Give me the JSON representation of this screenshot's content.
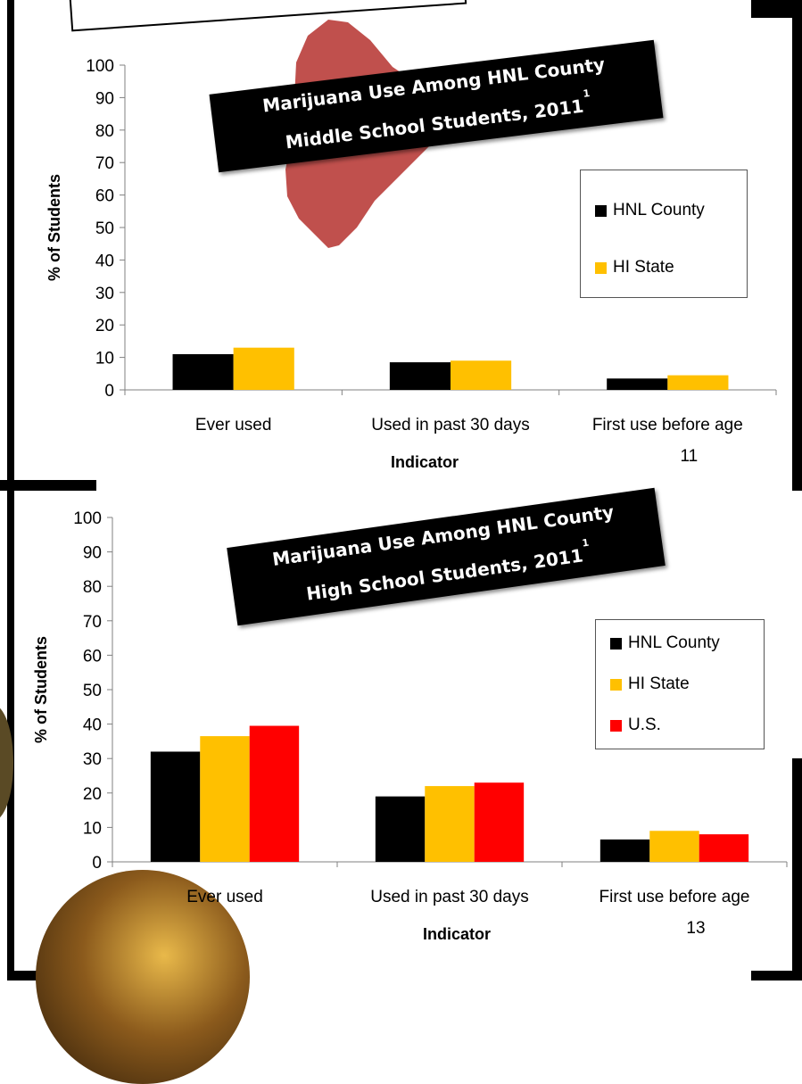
{
  "footnote_mark": "1",
  "charts": [
    {
      "title_line1": "Marijuana Use Among HNL County",
      "title_line2": "Middle School Students, 2011",
      "legend": [
        {
          "label": "HNL County",
          "color": "#000000"
        },
        {
          "label": "HI State",
          "color": "#FFC000"
        }
      ]
    },
    {
      "title_line1": "Marijuana Use Among HNL County",
      "title_line2": "High School Students, 2011",
      "legend": [
        {
          "label": "HNL County",
          "color": "#000000"
        },
        {
          "label": "HI State",
          "color": "#FFC000"
        },
        {
          "label": "U.S.",
          "color": "#FF0000"
        }
      ]
    }
  ],
  "chart_data": [
    {
      "type": "bar",
      "title": "Marijuana Use Among HNL County Middle School Students, 2011",
      "xlabel": "Indicator",
      "ylabel": "% of Students",
      "ylim": [
        0,
        100
      ],
      "yticks": [
        0,
        10,
        20,
        30,
        40,
        50,
        60,
        70,
        80,
        90,
        100
      ],
      "categories": [
        [
          "Ever used"
        ],
        [
          "Used in past 30 days"
        ],
        [
          "First use before age",
          "11"
        ]
      ],
      "series": [
        {
          "name": "HNL County",
          "color": "#000000",
          "values": [
            11,
            8.5,
            3.5
          ]
        },
        {
          "name": "HI State",
          "color": "#FFC000",
          "values": [
            13,
            9,
            4.5
          ]
        }
      ],
      "legend_position": "right"
    },
    {
      "type": "bar",
      "title": "Marijuana Use Among HNL County High School Students, 2011",
      "xlabel": "Indicator",
      "ylabel": "% of Students",
      "ylim": [
        0,
        100
      ],
      "yticks": [
        0,
        10,
        20,
        30,
        40,
        50,
        60,
        70,
        80,
        90,
        100
      ],
      "categories": [
        [
          "Ever used"
        ],
        [
          "Used in past 30 days"
        ],
        [
          "First use before age",
          "13"
        ]
      ],
      "series": [
        {
          "name": "HNL County",
          "color": "#000000",
          "values": [
            32,
            19,
            6.5
          ]
        },
        {
          "name": "HI State",
          "color": "#FFC000",
          "values": [
            36.5,
            22,
            9
          ]
        },
        {
          "name": "U.S.",
          "color": "#FF0000",
          "values": [
            39.5,
            23,
            8
          ]
        }
      ],
      "legend_position": "right"
    }
  ]
}
